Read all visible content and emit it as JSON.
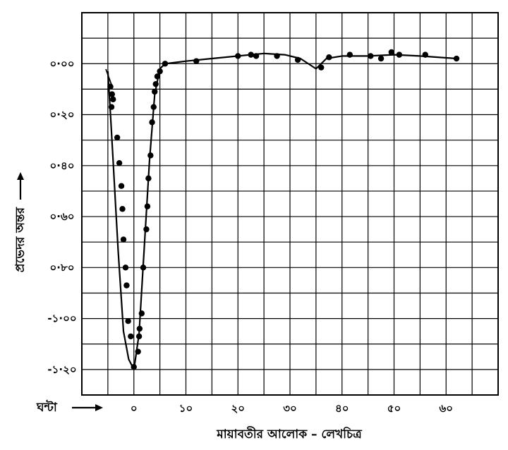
{
  "chart_data": {
    "type": "line",
    "title": "",
    "xlabel": "মায়াবতীর আলোক – লেখচিত্র",
    "ylabel": "প্রভেদর অন্তর",
    "x_axis_prefix": "ঘন্টা",
    "xlim": [
      -10,
      70
    ],
    "ylim": [
      -1.3,
      0.2
    ],
    "grid": true,
    "x_ticks": [
      {
        "value": 0,
        "label": "০"
      },
      {
        "value": 10,
        "label": "১০"
      },
      {
        "value": 20,
        "label": "২০"
      },
      {
        "value": 30,
        "label": "৩০"
      },
      {
        "value": 40,
        "label": "৪০"
      },
      {
        "value": 50,
        "label": "৫০"
      },
      {
        "value": 60,
        "label": "৬০"
      }
    ],
    "y_ticks": [
      {
        "value": 0.0,
        "label": "০·০০"
      },
      {
        "value": -0.2,
        "label": "০·২০"
      },
      {
        "value": -0.4,
        "label": "০·৪০"
      },
      {
        "value": -0.6,
        "label": "০·৬০"
      },
      {
        "value": -0.8,
        "label": "০·৮০"
      },
      {
        "value": -1.0,
        "label": "-১·০০"
      },
      {
        "value": -1.2,
        "label": "-১·২০"
      }
    ],
    "curve": {
      "x": [
        -5,
        -4.5,
        -4,
        -3.5,
        -3,
        -2,
        -1,
        0,
        1,
        2,
        3,
        4,
        5,
        6,
        10,
        15,
        20,
        25,
        29,
        32,
        35,
        37,
        40,
        45,
        50,
        55,
        62
      ],
      "y": [
        -0.03,
        -0.2,
        -0.38,
        -0.56,
        -0.74,
        -1.05,
        -1.16,
        -1.2,
        -1.06,
        -0.72,
        -0.38,
        -0.12,
        -0.02,
        0.0,
        0.01,
        0.02,
        0.03,
        0.04,
        0.035,
        0.02,
        -0.02,
        0.02,
        0.03,
        0.03,
        0.035,
        0.03,
        0.02
      ]
    },
    "points": {
      "x": [
        -4.5,
        -4.2,
        -4.0,
        -4.3,
        -3.2,
        -2.8,
        -2.4,
        -2.2,
        -2.0,
        -1.6,
        -1.4,
        -1.1,
        -0.6,
        0,
        0.8,
        1.0,
        1.1,
        1.5,
        1.8,
        2.4,
        2.6,
        2.8,
        3.2,
        3.5,
        3.8,
        4.0,
        4.2,
        4.5,
        5.0,
        6.0,
        12,
        20,
        22.5,
        23.5,
        27.5,
        31.5,
        36,
        37.5,
        41.5,
        45.5,
        47.5,
        49.5,
        51,
        56,
        62
      ],
      "y": [
        -0.09,
        -0.12,
        -0.14,
        -0.17,
        -0.29,
        -0.39,
        -0.48,
        -0.57,
        -0.69,
        -0.8,
        -0.87,
        -1.01,
        -1.07,
        -1.19,
        -1.13,
        -1.07,
        -1.04,
        -0.98,
        -0.8,
        -0.65,
        -0.56,
        -0.45,
        -0.36,
        -0.23,
        -0.17,
        -0.11,
        -0.08,
        -0.05,
        -0.03,
        0.0,
        0.01,
        0.03,
        0.035,
        0.03,
        0.03,
        0.015,
        -0.015,
        0.025,
        0.035,
        0.03,
        0.02,
        0.045,
        0.035,
        0.035,
        0.02
      ]
    }
  }
}
